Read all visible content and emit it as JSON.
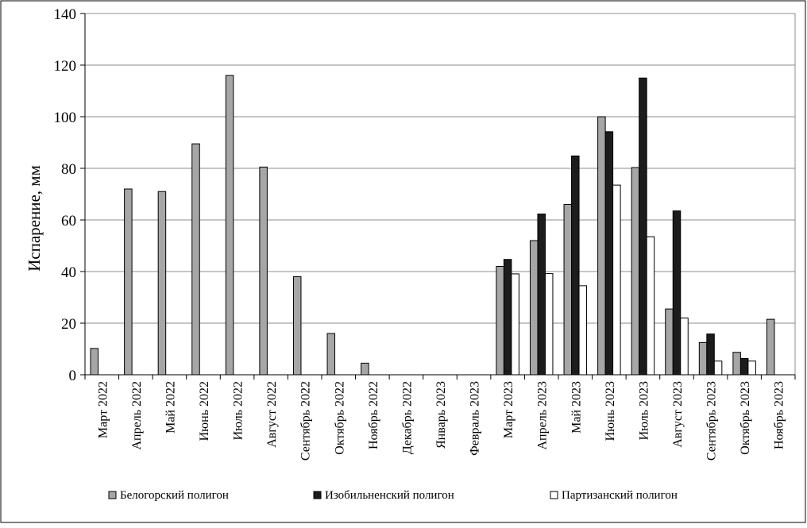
{
  "chart_data": {
    "type": "bar",
    "title": "",
    "xlabel": "",
    "ylabel": "Испарение, мм",
    "ylim": [
      0,
      140
    ],
    "yticks": [
      0,
      20,
      40,
      60,
      80,
      100,
      120,
      140
    ],
    "grid": true,
    "legend_position": "bottom",
    "categories": [
      "Март 2022",
      "Апрель 2022",
      "Май 2022",
      "Июнь 2022",
      "Июль 2022",
      "Август 2022",
      "Сентябрь 2022",
      "Октябрь 2022",
      "Ноябрь 2022",
      "Декабрь 2022",
      "Январь 2023",
      "Февраль 2023",
      "Март 2023",
      "Апрель 2023",
      "Май 2023",
      "Июнь 2023",
      "Июль 2023",
      "Август 2023",
      "Сентябрь 2023",
      "Октябрь 2023",
      "Ноябрь 2023"
    ],
    "series": [
      {
        "name": "Белогорский полигон",
        "color": "#a6a6a6",
        "values": [
          10.2,
          72,
          71,
          89.5,
          116,
          80.5,
          38,
          16,
          4.5,
          null,
          null,
          null,
          42,
          52,
          66,
          100,
          80.3,
          25.5,
          12.5,
          8.7,
          21.5
        ]
      },
      {
        "name": "Изобильненский полигон",
        "color": "#1c1c1c",
        "values": [
          null,
          null,
          null,
          null,
          null,
          null,
          null,
          null,
          null,
          null,
          null,
          null,
          44.7,
          62.3,
          84.8,
          94.2,
          115,
          63.5,
          15.8,
          6.3,
          null
        ]
      },
      {
        "name": "Партизанский полигон",
        "color": "#ffffff",
        "values": [
          null,
          null,
          null,
          null,
          null,
          null,
          null,
          null,
          null,
          null,
          null,
          null,
          39.1,
          39.2,
          34.5,
          73.5,
          53.5,
          22,
          5.3,
          5.3,
          null
        ]
      }
    ]
  }
}
